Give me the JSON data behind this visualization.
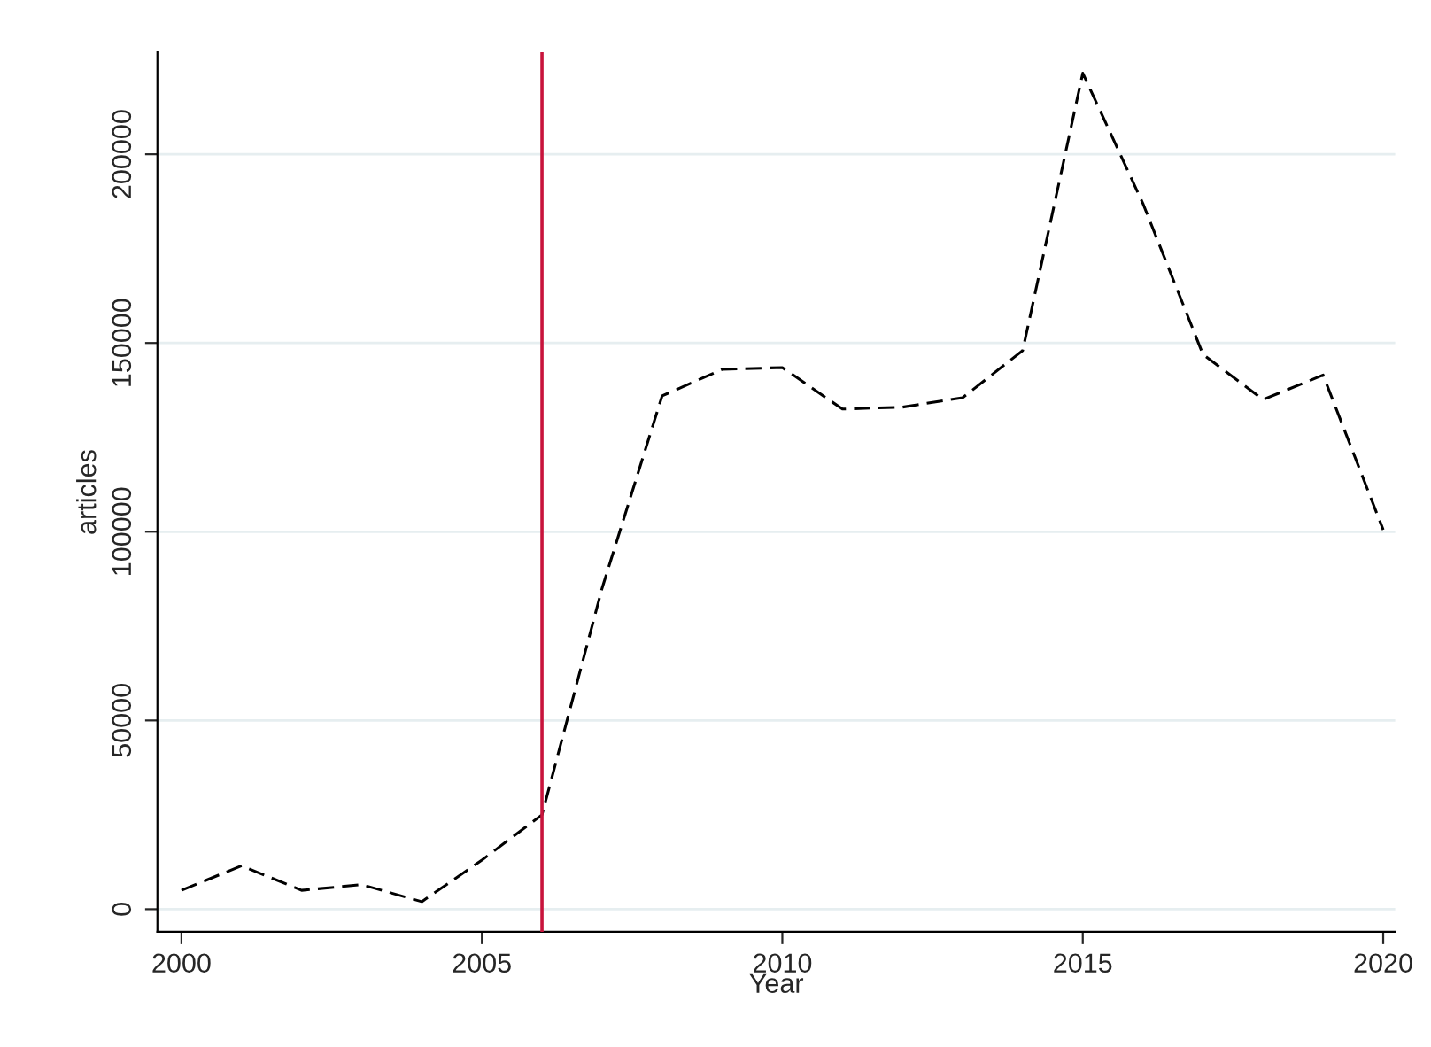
{
  "chart_data": {
    "type": "line",
    "xlabel": "Year",
    "ylabel": "articles",
    "x": [
      2000,
      2001,
      2002,
      2003,
      2004,
      2005,
      2006,
      2007,
      2008,
      2009,
      2010,
      2011,
      2012,
      2013,
      2014,
      2015,
      2016,
      2017,
      2018,
      2019,
      2020
    ],
    "series": [
      {
        "color": "#000000",
        "line_style": "dashed",
        "values": [
          5000,
          11500,
          5000,
          6500,
          2000,
          13000,
          25000,
          85000,
          136000,
          143000,
          143500,
          132500,
          133000,
          135500,
          148000,
          221500,
          187000,
          147000,
          135000,
          141500,
          100500
        ]
      }
    ],
    "xlim": [
      1999.6,
      2020.2
    ],
    "xticks": [
      2000,
      2005,
      2010,
      2015,
      2020
    ],
    "ylim": [
      -6000,
      227000
    ],
    "yticks": [
      0,
      50000,
      100000,
      150000,
      200000
    ],
    "ref_lines": [
      {
        "axis": "x",
        "value": 2006,
        "color": "#c8143c"
      }
    ],
    "grid": "y"
  }
}
